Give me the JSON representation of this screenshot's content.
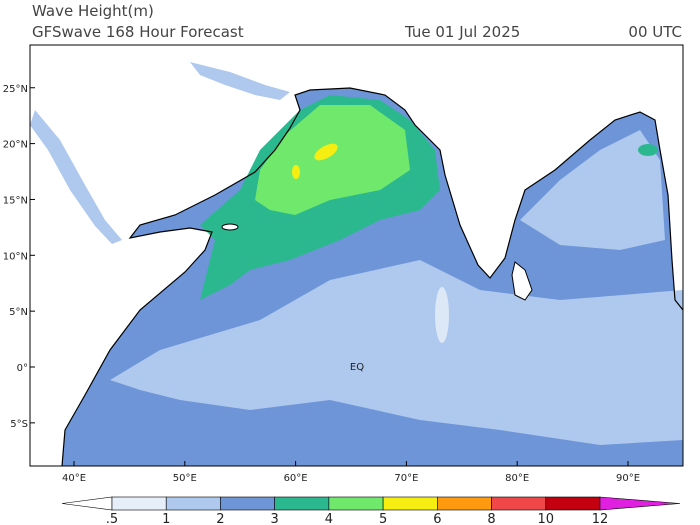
{
  "header": {
    "title": "Wave Height(m)",
    "subtitle": "GFSwave 168 Hour Forecast",
    "date": "Tue 01 Jul 2025",
    "time": "00 UTC"
  },
  "map": {
    "lat_ticks": [
      {
        "value": 25,
        "label": "25°N"
      },
      {
        "value": 20,
        "label": "20°N"
      },
      {
        "value": 15,
        "label": "15°N"
      },
      {
        "value": 10,
        "label": "10°N"
      },
      {
        "value": 5,
        "label": "5°N"
      },
      {
        "value": 0,
        "label": "0°"
      },
      {
        "value": -5,
        "label": "5°S"
      }
    ],
    "lon_ticks": [
      {
        "value": 40,
        "label": "40°E"
      },
      {
        "value": 50,
        "label": "50°E"
      },
      {
        "value": 60,
        "label": "60°E"
      },
      {
        "value": 70,
        "label": "70°E"
      },
      {
        "value": 80,
        "label": "80°E"
      },
      {
        "value": 90,
        "label": "90°E"
      }
    ],
    "equator_label": "EQ"
  },
  "colorbar": {
    "levels": [
      {
        "value": 0.5,
        "label": ".5"
      },
      1,
      2,
      3,
      4,
      5,
      6,
      8,
      10,
      12
    ],
    "under_color": "#ffffff",
    "colors": [
      "#e6eef9",
      "#aec8ee",
      "#6d95d8",
      "#2cb88f",
      "#70e86c",
      "#f6ee10",
      "#ff9a10",
      "#f04848",
      "#c40010"
    ],
    "over_color": "#e020e0"
  }
}
